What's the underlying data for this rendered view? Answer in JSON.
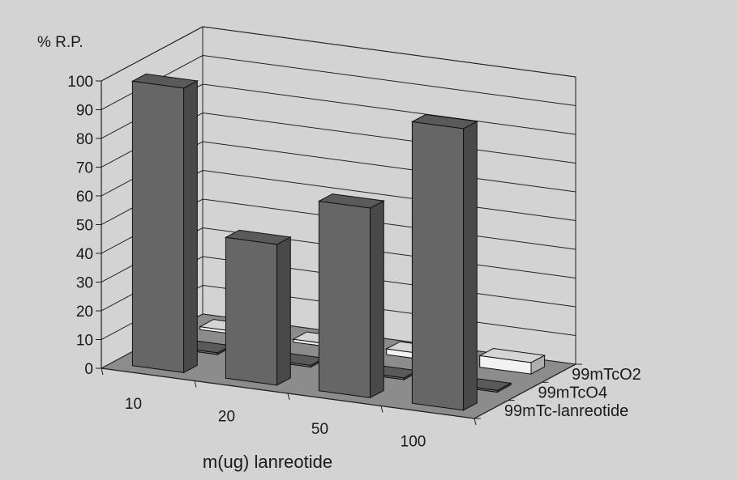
{
  "chart_data": {
    "type": "bar",
    "style": "3d-column",
    "ylabel": "% R.P.",
    "xlabel": "m(ug) lanreotide",
    "categories": [
      "10",
      "20",
      "50",
      "100"
    ],
    "series": [
      {
        "name": "99mTc-lanreotide",
        "values": [
          99,
          49,
          66,
          98
        ],
        "color": "#666666"
      },
      {
        "name": "99mTcO4",
        "values": [
          0,
          0,
          0,
          0
        ],
        "color": "#666666"
      },
      {
        "name": "99mTcO2",
        "values": [
          1,
          1,
          2,
          4
        ],
        "color": "#f2f2f2"
      }
    ],
    "yticks": [
      0,
      10,
      20,
      30,
      40,
      50,
      60,
      70,
      80,
      90,
      100
    ],
    "ylim": [
      0,
      100
    ],
    "grid": true,
    "legend": "right"
  }
}
